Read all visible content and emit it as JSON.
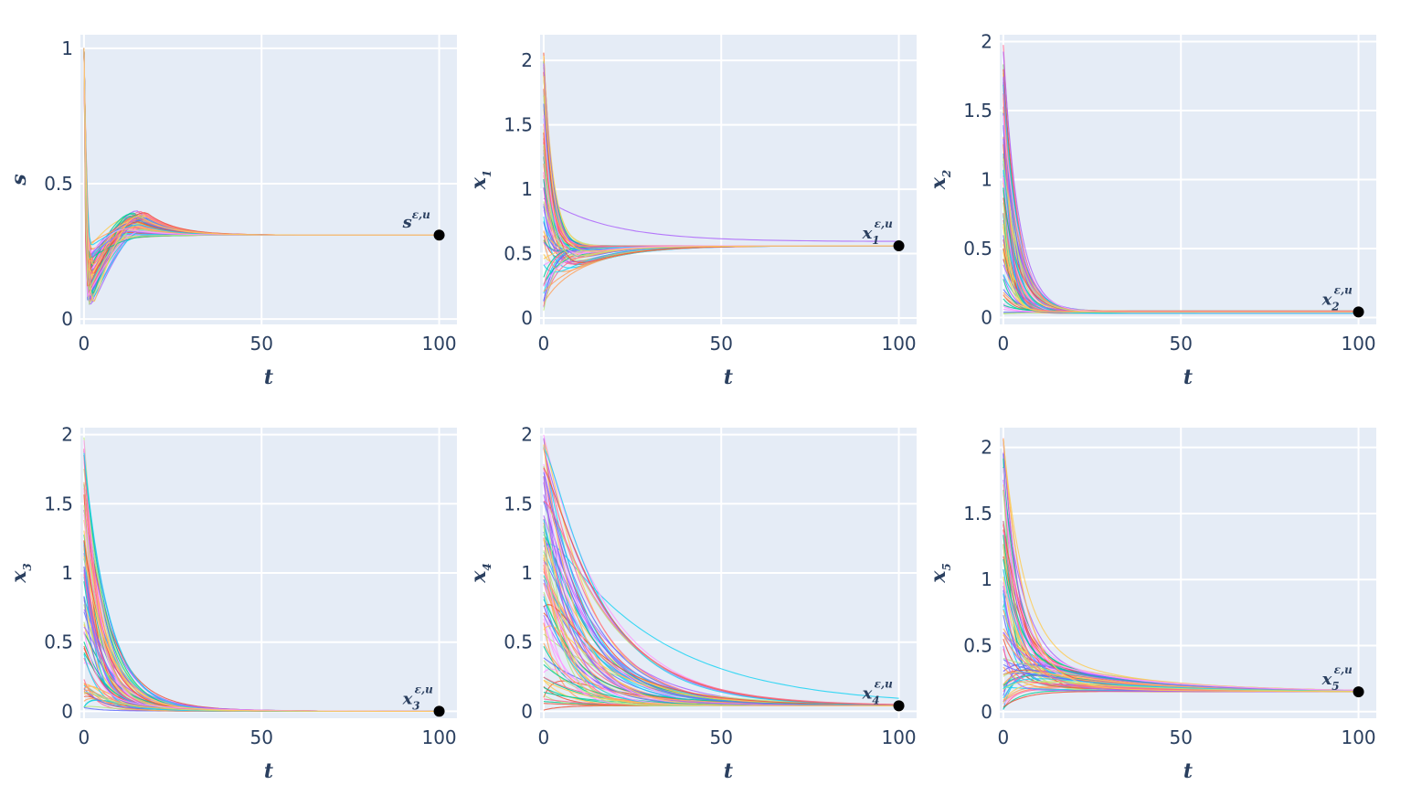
{
  "chart_data": [
    {
      "type": "line",
      "ylabel": "s",
      "xlabel": "t",
      "annotation": "s",
      "annotation_sub": "",
      "annotation_sup": "ε,u",
      "xlim": [
        -1,
        105
      ],
      "ylim": [
        -0.02,
        1.05
      ],
      "xticks": [
        0,
        50,
        100
      ],
      "xtick_labels": [
        "0",
        "50",
        "100"
      ],
      "yticks": [
        0,
        0.5,
        1
      ],
      "ytick_labels": [
        "0",
        "0.5",
        "1"
      ],
      "end_point": [
        100,
        0.31
      ],
      "grid": true,
      "legend": "none",
      "series_count": 80,
      "series_note_ranges": {
        "start": [
          0.95,
          1.0
        ],
        "min": [
          0.04,
          0.28
        ],
        "min_t": [
          1,
          3
        ],
        "peak": [
          0.3,
          0.4
        ],
        "peak_t": [
          12,
          18
        ],
        "end": 0.31
      }
    },
    {
      "type": "line",
      "ylabel": "x",
      "ylabel_sub": "1",
      "xlabel": "t",
      "annotation": "x",
      "annotation_sub": "1",
      "annotation_sup": "ε,u",
      "xlim": [
        -1,
        105
      ],
      "ylim": [
        -0.05,
        2.2
      ],
      "xticks": [
        0,
        50,
        100
      ],
      "xtick_labels": [
        "0",
        "50",
        "100"
      ],
      "yticks": [
        0,
        0.5,
        1,
        1.5,
        2
      ],
      "ytick_labels": [
        "0",
        "0.5",
        "1",
        "1.5",
        "2"
      ],
      "end_point": [
        100,
        0.56
      ],
      "grid": true,
      "legend": "none",
      "series_count": 80
    },
    {
      "type": "line",
      "ylabel": "x",
      "ylabel_sub": "2",
      "xlabel": "t",
      "annotation": "x",
      "annotation_sub": "2",
      "annotation_sup": "ε,u",
      "xlim": [
        -1,
        105
      ],
      "ylim": [
        -0.05,
        2.05
      ],
      "xticks": [
        0,
        50,
        100
      ],
      "xtick_labels": [
        "0",
        "50",
        "100"
      ],
      "yticks": [
        0,
        0.5,
        1,
        1.5,
        2
      ],
      "ytick_labels": [
        "0",
        "0.5",
        "1",
        "1.5",
        "2"
      ],
      "end_point": [
        100,
        0.04
      ],
      "grid": true,
      "legend": "none",
      "series_count": 80
    },
    {
      "type": "line",
      "ylabel": "x",
      "ylabel_sub": "3",
      "xlabel": "t",
      "annotation": "x",
      "annotation_sub": "3",
      "annotation_sup": "ε,u",
      "xlim": [
        -1,
        105
      ],
      "ylim": [
        -0.05,
        2.05
      ],
      "xticks": [
        0,
        50,
        100
      ],
      "xtick_labels": [
        "0",
        "50",
        "100"
      ],
      "yticks": [
        0,
        0.5,
        1,
        1.5,
        2
      ],
      "ytick_labels": [
        "0",
        "0.5",
        "1",
        "1.5",
        "2"
      ],
      "end_point": [
        100,
        0.0
      ],
      "grid": true,
      "legend": "none",
      "series_count": 80
    },
    {
      "type": "line",
      "ylabel": "x",
      "ylabel_sub": "4",
      "xlabel": "t",
      "annotation": "x",
      "annotation_sub": "4",
      "annotation_sup": "ε,u",
      "xlim": [
        -1,
        105
      ],
      "ylim": [
        -0.05,
        2.05
      ],
      "xticks": [
        0,
        50,
        100
      ],
      "xtick_labels": [
        "0",
        "50",
        "100"
      ],
      "yticks": [
        0,
        0.5,
        1,
        1.5,
        2
      ],
      "ytick_labels": [
        "0",
        "0.5",
        "1",
        "1.5",
        "2"
      ],
      "end_point": [
        100,
        0.04
      ],
      "grid": true,
      "legend": "none",
      "series_count": 80
    },
    {
      "type": "line",
      "ylabel": "x",
      "ylabel_sub": "5",
      "xlabel": "t",
      "annotation": "x",
      "annotation_sub": "5",
      "annotation_sup": "ε,u",
      "xlim": [
        -1,
        105
      ],
      "ylim": [
        -0.05,
        2.15
      ],
      "xticks": [
        0,
        50,
        100
      ],
      "xtick_labels": [
        "0",
        "50",
        "100"
      ],
      "yticks": [
        0,
        0.5,
        1,
        1.5,
        2
      ],
      "ytick_labels": [
        "0",
        "0.5",
        "1",
        "1.5",
        "2"
      ],
      "end_point": [
        100,
        0.15
      ],
      "grid": true,
      "legend": "none",
      "series_count": 80
    }
  ],
  "colors": {
    "plot_bg": "#E5ECF6",
    "grid": "#FFFFFF",
    "text": "#2a3f5f",
    "end_marker": "#000000",
    "palette": [
      "#636EFA",
      "#EF553B",
      "#00CC96",
      "#AB63FA",
      "#FFA15A",
      "#19D3F3",
      "#FF6692",
      "#B6E880",
      "#FF97FF",
      "#FECB52"
    ]
  }
}
